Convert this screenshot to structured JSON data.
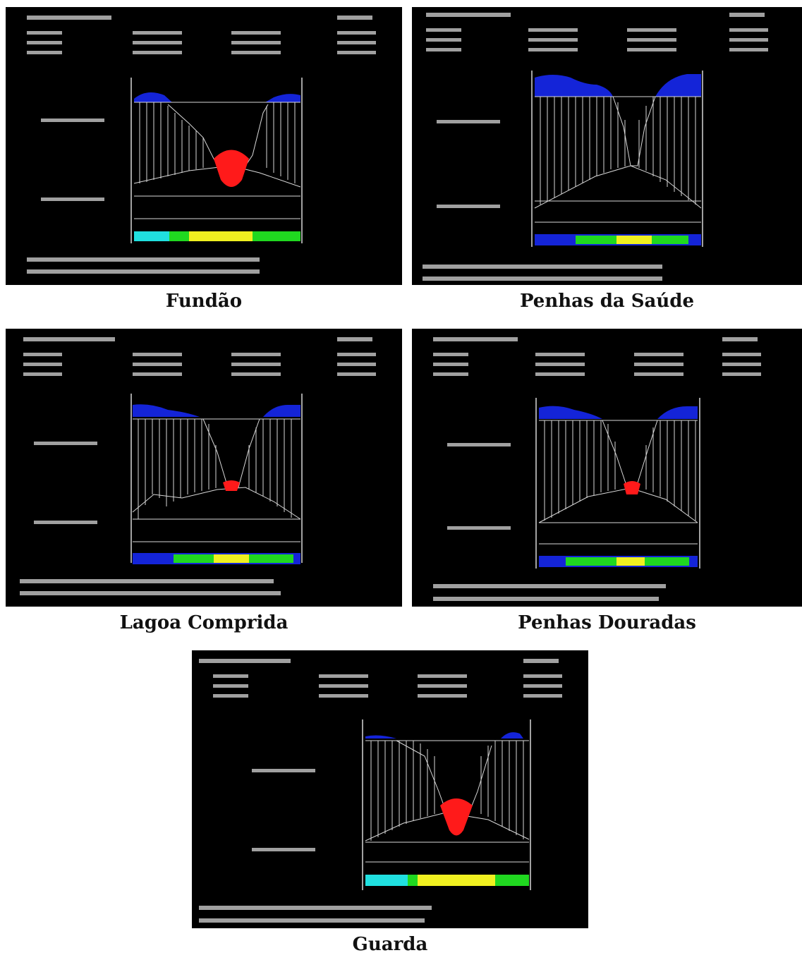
{
  "figure": {
    "panels": [
      {
        "id": "fundao",
        "caption": "Fundão",
        "terrain_bg": "#000000",
        "left_cap": "round",
        "depth": "deep"
      },
      {
        "id": "penhas-da-saude",
        "caption": "Penhas da Saúde",
        "terrain_bg": "#000000",
        "left_cap": "flat",
        "depth": "narrow"
      },
      {
        "id": "lagoa-comprida",
        "caption": "Lagoa Comprida",
        "terrain_bg": "#000000",
        "left_cap": "flat",
        "depth": "mid"
      },
      {
        "id": "penhas-douradas",
        "caption": "Penhas Douradas",
        "terrain_bg": "#000000",
        "left_cap": "flat",
        "depth": "mid"
      },
      {
        "id": "guarda",
        "caption": "Guarda",
        "terrain_bg": "#000000",
        "left_cap": "flat",
        "depth": "deep"
      }
    ],
    "colors": {
      "panel_bg": "#000000",
      "blue": "#1424d8",
      "red": "#ff1a1a",
      "grid": "#d8d8d8",
      "bar_cyan": "#20e0e0",
      "bar_green": "#20d820",
      "bar_yellow": "#f0f020"
    }
  }
}
